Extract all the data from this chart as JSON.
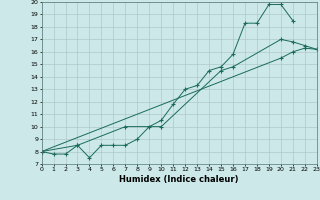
{
  "xlabel": "Humidex (Indice chaleur)",
  "bg_color": "#cce8e8",
  "grid_color": "#b0c8c8",
  "line_color": "#1a6b5a",
  "xlim": [
    0,
    23
  ],
  "ylim": [
    7,
    20
  ],
  "line1_x": [
    0,
    1,
    2,
    3,
    4,
    5,
    6,
    7,
    8,
    9,
    10,
    11,
    12,
    13,
    14,
    15,
    16,
    17,
    18,
    19,
    20,
    21
  ],
  "line1_y": [
    8.0,
    7.8,
    7.8,
    8.5,
    7.5,
    8.5,
    8.5,
    8.5,
    9.0,
    10.0,
    10.5,
    11.8,
    13.0,
    13.3,
    14.5,
    14.8,
    15.8,
    18.3,
    18.3,
    19.8,
    19.8,
    18.5
  ],
  "line2_x": [
    0,
    3,
    7,
    10,
    15,
    16,
    20,
    21,
    22,
    23
  ],
  "line2_y": [
    8.0,
    8.5,
    10.0,
    10.0,
    14.5,
    14.8,
    17.0,
    16.8,
    16.5,
    16.2
  ],
  "line3_x": [
    0,
    20,
    21,
    22,
    23
  ],
  "line3_y": [
    8.0,
    15.5,
    16.0,
    16.3,
    16.2
  ]
}
